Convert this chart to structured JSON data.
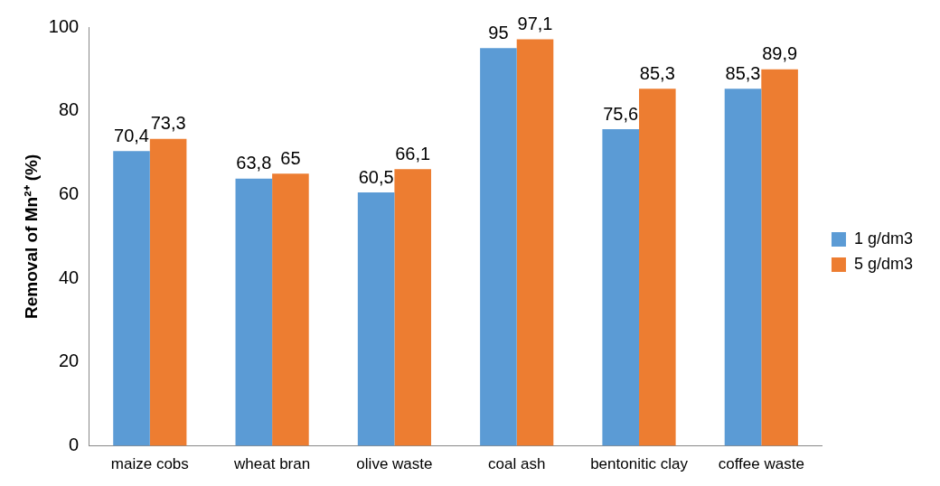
{
  "chart_data": {
    "type": "bar",
    "ylabel": "Removal of Mn²⁺ (%)",
    "categories": [
      "maize cobs",
      "wheat bran",
      "olive waste",
      "coal ash",
      "bentonitic clay",
      "coffee waste"
    ],
    "series": [
      {
        "name": "1 g/dm3",
        "color": "#5b9bd5",
        "values": [
          70.4,
          63.8,
          60.5,
          95,
          75.6,
          85.3
        ],
        "value_labels": [
          "70,4",
          "63,8",
          "60,5",
          "95",
          "75,6",
          "85,3"
        ]
      },
      {
        "name": "5 g/dm3",
        "color": "#ed7d31",
        "values": [
          73.3,
          65,
          66.1,
          97.1,
          85.3,
          89.9
        ],
        "value_labels": [
          "73,3",
          "65",
          "66,1",
          "97,1",
          "85,3",
          "89,9"
        ]
      }
    ],
    "ylim": [
      0,
      100
    ],
    "yticks": [
      0,
      20,
      40,
      60,
      80,
      100
    ],
    "grid": false,
    "legend": "right"
  }
}
